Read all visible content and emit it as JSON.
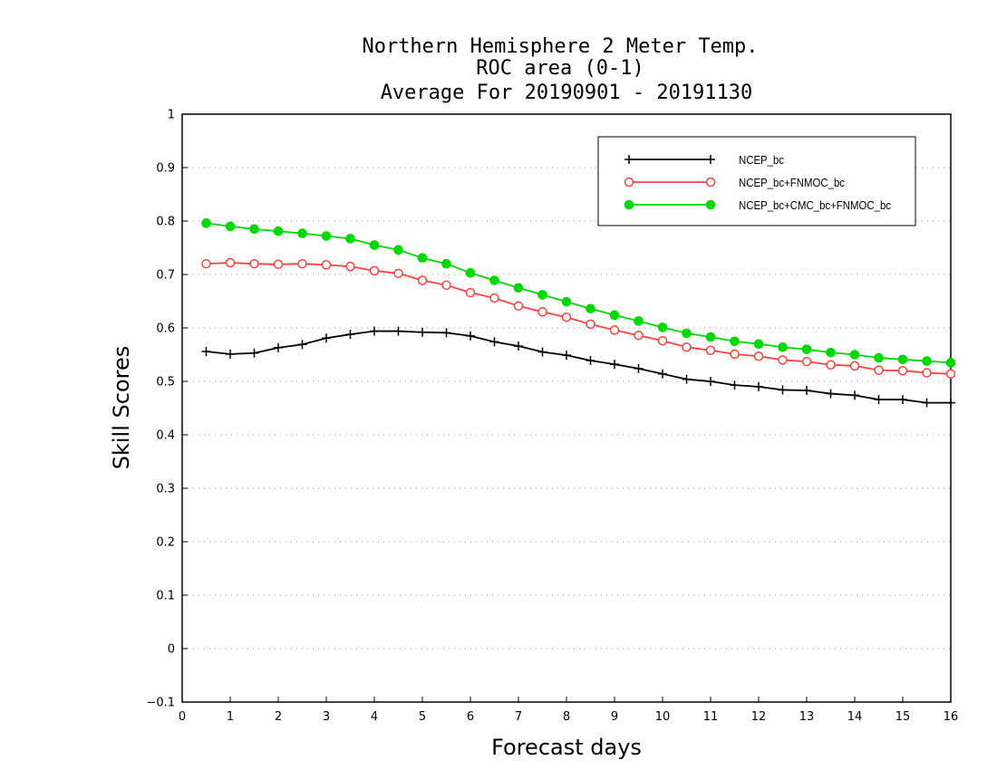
{
  "chart_data": {
    "type": "line",
    "title_lines": [
      "Northern Hemisphere 2 Meter Temp.",
      "ROC area (0-1)",
      "Average For 20190901 - 20191130"
    ],
    "xlabel": "Forecast days",
    "ylabel": "Skill Scores",
    "xlim": [
      0,
      16
    ],
    "ylim": [
      -0.1,
      1
    ],
    "xticks": [
      "0",
      "1",
      "2",
      "3",
      "4",
      "5",
      "6",
      "7",
      "8",
      "9",
      "10",
      "11",
      "12",
      "13",
      "14",
      "15",
      "16"
    ],
    "yticks": [
      "−0.1",
      "0",
      "0.1",
      "0.2",
      "0.3",
      "0.4",
      "0.5",
      "0.6",
      "0.7",
      "0.8",
      "0.9",
      "1"
    ],
    "grid": "horizontal dotted",
    "legend_position": "top-right",
    "x": [
      0.5,
      1,
      1.5,
      2,
      2.5,
      3,
      3.5,
      4,
      4.5,
      5,
      5.5,
      6,
      6.5,
      7,
      7.5,
      8,
      8.5,
      9,
      9.5,
      10,
      10.5,
      11,
      11.5,
      12,
      12.5,
      13,
      13.5,
      14,
      14.5,
      15,
      15.5,
      16
    ],
    "series": [
      {
        "name": "NCEP_bc",
        "color": "#000000",
        "marker": "plus",
        "values": [
          0.556,
          0.551,
          0.553,
          0.563,
          0.569,
          0.581,
          0.588,
          0.594,
          0.594,
          0.592,
          0.591,
          0.585,
          0.574,
          0.566,
          0.555,
          0.549,
          0.539,
          0.532,
          0.524,
          0.514,
          0.504,
          0.5,
          0.493,
          0.49,
          0.484,
          0.483,
          0.477,
          0.474,
          0.466,
          0.466,
          0.46,
          0.46
        ]
      },
      {
        "name": "NCEP_bc+FNMOC_bc",
        "color": "#ff4040",
        "marker": "open-circle",
        "values": [
          0.72,
          0.722,
          0.72,
          0.719,
          0.72,
          0.718,
          0.715,
          0.707,
          0.702,
          0.689,
          0.68,
          0.666,
          0.656,
          0.641,
          0.63,
          0.62,
          0.607,
          0.596,
          0.586,
          0.576,
          0.564,
          0.558,
          0.551,
          0.547,
          0.54,
          0.537,
          0.531,
          0.529,
          0.521,
          0.52,
          0.516,
          0.514
        ]
      },
      {
        "name": "NCEP_bc+CMC_bc+FNMOC_bc",
        "color": "#00d800",
        "marker": "filled-circle",
        "values": [
          0.796,
          0.79,
          0.785,
          0.781,
          0.777,
          0.772,
          0.767,
          0.755,
          0.746,
          0.731,
          0.72,
          0.703,
          0.689,
          0.675,
          0.662,
          0.649,
          0.636,
          0.624,
          0.613,
          0.601,
          0.59,
          0.583,
          0.575,
          0.57,
          0.564,
          0.56,
          0.554,
          0.55,
          0.544,
          0.541,
          0.538,
          0.535
        ]
      }
    ]
  }
}
